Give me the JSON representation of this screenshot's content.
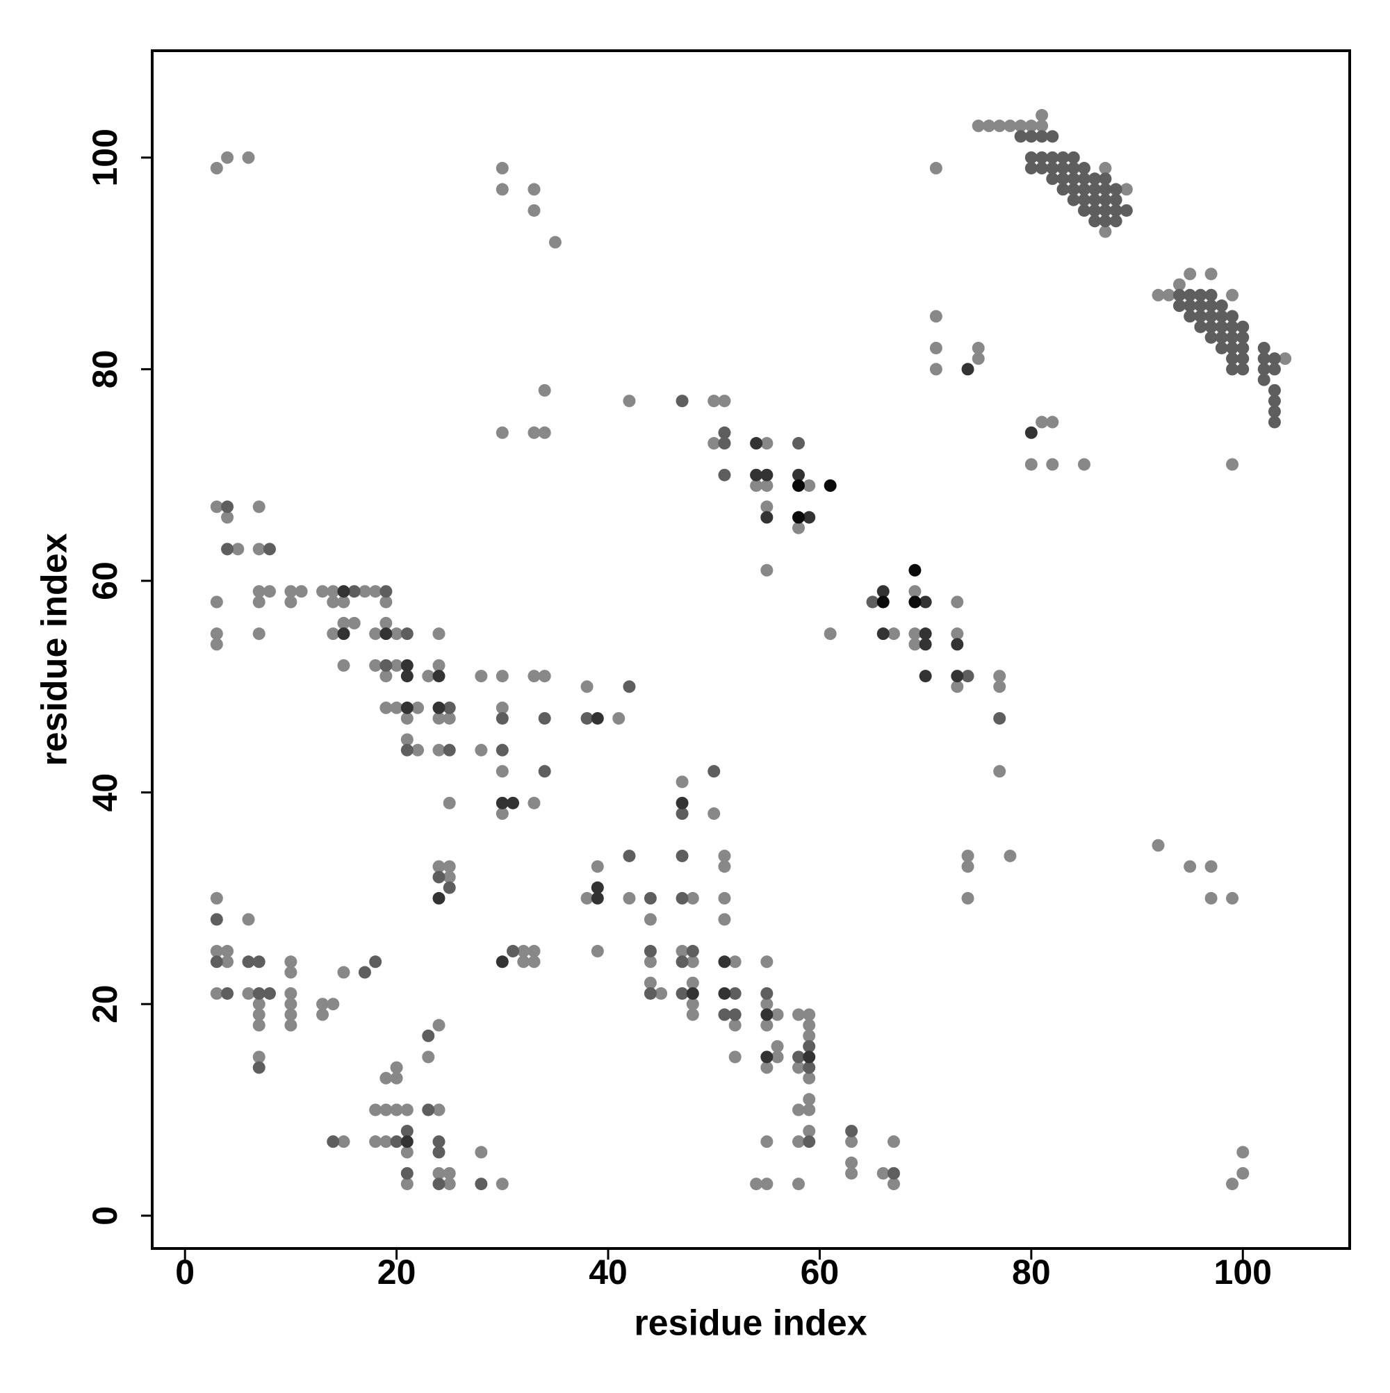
{
  "chart_data": {
    "type": "scatter",
    "xlabel": "residue index",
    "ylabel": "residue index",
    "xlim": [
      -3.1,
      110.1
    ],
    "ylim": [
      -3.1,
      110.1
    ],
    "xticks": [
      0,
      20,
      40,
      60,
      80,
      100
    ],
    "yticks": [
      0,
      20,
      40,
      60,
      80,
      100
    ],
    "series": [
      {
        "color": "#888888",
        "x": [
          3,
          4,
          6,
          30,
          30,
          33,
          33,
          35,
          71,
          75,
          76,
          77,
          78,
          79,
          80,
          81,
          81,
          87,
          89,
          87,
          92,
          93,
          94,
          95,
          97,
          99,
          104,
          71,
          71,
          71,
          75,
          75,
          81,
          82,
          80,
          82,
          85,
          99,
          34,
          30,
          33,
          34,
          42,
          50,
          51,
          50,
          55,
          54,
          55,
          59,
          55,
          58,
          55,
          69,
          73,
          67,
          61,
          69,
          69,
          73,
          73,
          77,
          77,
          77,
          78,
          74,
          74,
          74,
          92,
          95,
          97,
          97,
          99,
          3,
          4,
          5,
          7,
          7,
          3,
          7,
          7,
          8,
          10,
          10,
          11,
          3,
          3,
          7,
          13,
          14,
          14,
          15,
          17,
          18,
          19,
          14,
          15,
          16,
          15,
          18,
          20,
          19,
          18,
          20,
          19,
          19,
          20,
          22,
          21,
          21,
          22,
          24,
          24,
          23,
          24,
          25,
          24,
          25,
          28,
          30,
          30,
          28,
          30,
          30,
          33,
          33,
          34,
          38,
          41,
          24,
          25,
          25,
          39,
          38,
          42,
          39,
          47,
          50,
          51,
          51,
          48,
          51,
          51,
          3,
          6,
          3,
          4,
          4,
          3,
          6,
          7,
          7,
          7,
          10,
          10,
          10,
          10,
          10,
          10,
          13,
          14,
          13,
          15,
          7,
          32,
          33,
          32,
          33,
          44,
          44,
          44,
          45,
          47,
          48,
          48,
          48,
          48,
          52,
          52,
          52,
          55,
          55,
          56,
          55,
          56,
          56,
          55,
          58,
          59,
          59,
          59,
          58,
          59,
          59,
          58,
          59,
          59,
          58,
          55,
          54,
          55,
          58,
          63,
          63,
          63,
          66,
          67,
          67,
          100,
          100,
          99,
          19,
          20,
          20,
          24,
          23,
          18,
          19,
          20,
          21,
          24,
          15,
          18,
          19,
          21,
          21,
          24,
          25,
          25,
          28,
          30
        ],
        "values": [
          99,
          100,
          100,
          99,
          97,
          97,
          95,
          92,
          99,
          103,
          103,
          103,
          103,
          103,
          103,
          103,
          104,
          99,
          97,
          93,
          87,
          87,
          88,
          89,
          89,
          87,
          81,
          85,
          82,
          80,
          82,
          81,
          75,
          75,
          71,
          71,
          71,
          71,
          78,
          74,
          74,
          74,
          77,
          77,
          77,
          73,
          73,
          69,
          69,
          69,
          67,
          65,
          61,
          59,
          58,
          55,
          55,
          55,
          54,
          55,
          50,
          51,
          50,
          42,
          34,
          34,
          33,
          30,
          35,
          33,
          33,
          30,
          30,
          67,
          66,
          63,
          67,
          63,
          58,
          59,
          58,
          59,
          59,
          58,
          59,
          55,
          54,
          55,
          59,
          59,
          58,
          58,
          59,
          59,
          58,
          55,
          56,
          56,
          52,
          55,
          55,
          56,
          52,
          52,
          51,
          48,
          48,
          48,
          47,
          45,
          44,
          55,
          52,
          51,
          47,
          47,
          44,
          39,
          51,
          51,
          48,
          44,
          42,
          38,
          39,
          51,
          51,
          50,
          47,
          33,
          33,
          32,
          33,
          30,
          30,
          25,
          41,
          38,
          34,
          33,
          30,
          30,
          28,
          30,
          28,
          25,
          25,
          24,
          21,
          21,
          20,
          19,
          18,
          24,
          23,
          21,
          20,
          19,
          18,
          20,
          20,
          19,
          23,
          15,
          25,
          25,
          24,
          24,
          28,
          24,
          22,
          21,
          25,
          24,
          22,
          20,
          19,
          24,
          18,
          15,
          24,
          20,
          19,
          18,
          16,
          15,
          14,
          19,
          19,
          18,
          17,
          14,
          13,
          11,
          10,
          10,
          8,
          7,
          7,
          3,
          3,
          3,
          7,
          5,
          4,
          4,
          7,
          3,
          6,
          4,
          3,
          13,
          14,
          13,
          18,
          15,
          10,
          10,
          10,
          10,
          10,
          7,
          7,
          7,
          6,
          3,
          4,
          4,
          3,
          6,
          3
        ]
      },
      {
        "color": "#5e5e5e",
        "x": [
          79,
          80,
          81,
          82,
          80,
          81,
          82,
          83,
          84,
          80,
          81,
          82,
          83,
          84,
          85,
          82,
          83,
          84,
          85,
          86,
          87,
          83,
          84,
          85,
          86,
          87,
          88,
          84,
          85,
          86,
          87,
          88,
          85,
          86,
          87,
          88,
          89,
          86,
          87,
          88,
          94,
          95,
          96,
          97,
          94,
          95,
          96,
          97,
          98,
          95,
          96,
          97,
          98,
          99,
          96,
          97,
          98,
          99,
          100,
          97,
          98,
          99,
          100,
          98,
          99,
          100,
          102,
          99,
          100,
          102,
          103,
          99,
          100,
          102,
          103,
          102,
          103,
          103,
          103,
          103,
          47,
          51,
          51,
          51,
          58,
          65,
          74,
          77,
          4,
          4,
          8,
          16,
          19,
          21,
          19,
          21,
          25,
          25,
          30,
          30,
          34,
          34,
          38,
          42,
          24,
          25,
          42,
          44,
          47,
          50,
          47,
          47,
          3,
          3,
          6,
          7,
          4,
          7,
          8,
          17,
          18,
          7,
          31,
          44,
          44,
          48,
          47,
          47,
          52,
          51,
          52,
          55,
          59,
          58,
          59,
          59,
          63,
          67,
          23,
          23,
          14,
          20,
          21,
          21,
          24,
          24,
          24,
          28
        ],
        "values": [
          102,
          102,
          102,
          102,
          100,
          100,
          100,
          100,
          100,
          99,
          99,
          99,
          99,
          99,
          99,
          98,
          98,
          98,
          98,
          98,
          98,
          97,
          97,
          97,
          97,
          97,
          97,
          96,
          96,
          96,
          96,
          96,
          95,
          95,
          95,
          95,
          95,
          94,
          94,
          94,
          87,
          87,
          87,
          87,
          86,
          86,
          86,
          86,
          86,
          85,
          85,
          85,
          85,
          85,
          84,
          84,
          84,
          84,
          84,
          83,
          83,
          83,
          83,
          82,
          82,
          82,
          82,
          81,
          81,
          81,
          81,
          80,
          80,
          80,
          80,
          79,
          78,
          77,
          76,
          75,
          77,
          74,
          73,
          70,
          73,
          58,
          51,
          47,
          67,
          63,
          63,
          59,
          59,
          55,
          52,
          44,
          48,
          44,
          47,
          44,
          47,
          42,
          47,
          50,
          32,
          31,
          34,
          30,
          38,
          42,
          34,
          30,
          28,
          24,
          24,
          24,
          21,
          21,
          21,
          23,
          24,
          14,
          25,
          25,
          21,
          25,
          24,
          21,
          21,
          19,
          19,
          21,
          16,
          15,
          14,
          7,
          8,
          4,
          17,
          10,
          7,
          7,
          8,
          4,
          7,
          6,
          3,
          3
        ]
      },
      {
        "color": "#333333",
        "x": [
          74,
          80,
          54,
          54,
          55,
          58,
          55,
          59,
          66,
          70,
          66,
          70,
          70,
          73,
          70,
          73,
          15,
          15,
          19,
          21,
          21,
          21,
          24,
          24,
          30,
          31,
          39,
          24,
          39,
          39,
          47,
          30,
          48,
          51,
          51,
          55,
          55,
          59,
          21
        ],
        "values": [
          80,
          74,
          73,
          70,
          70,
          70,
          66,
          66,
          59,
          58,
          55,
          55,
          54,
          54,
          51,
          51,
          59,
          55,
          55,
          52,
          51,
          48,
          51,
          48,
          39,
          39,
          47,
          30,
          31,
          30,
          39,
          24,
          21,
          24,
          21,
          19,
          15,
          15,
          7
        ]
      },
      {
        "color": "#0a0a0a",
        "x": [
          58,
          61,
          58,
          66,
          69,
          69
        ],
        "values": [
          69,
          69,
          66,
          58,
          61,
          58
        ]
      }
    ]
  }
}
